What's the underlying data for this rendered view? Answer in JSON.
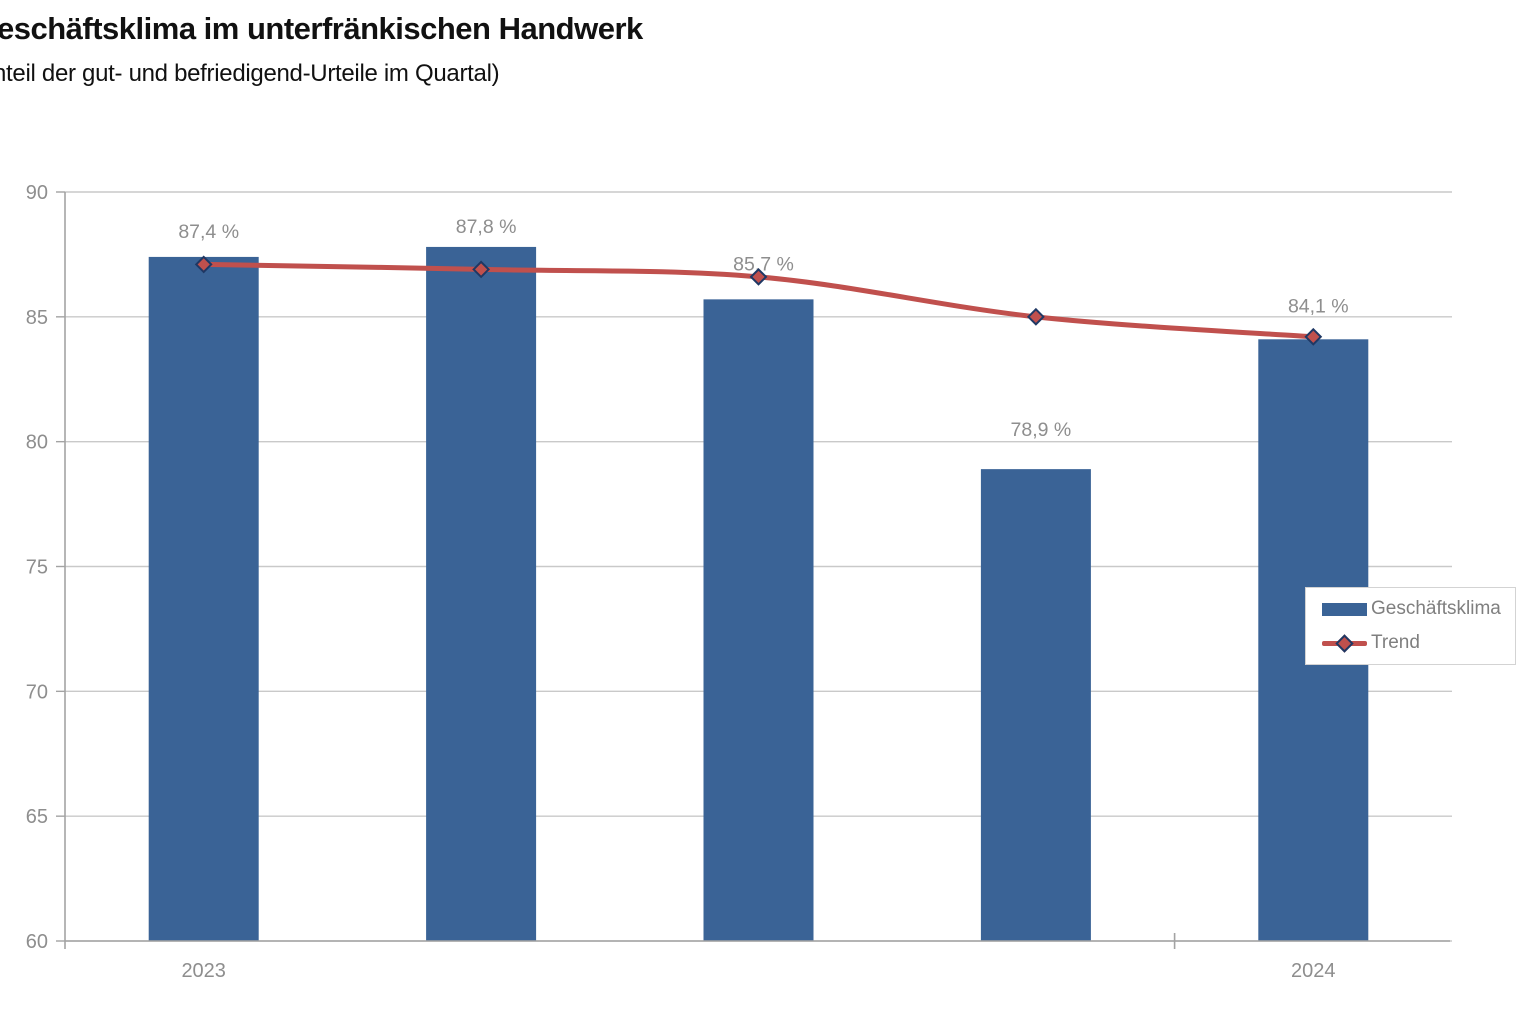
{
  "header": {
    "title": "eschäftsklima im unterfränkischen Handwerk",
    "subtitle": "nteil der gut- und befriedigend-Urteile im Quartal)"
  },
  "chart_data": {
    "type": "bar",
    "categories": [
      "2023",
      "",
      "",
      "",
      "2024"
    ],
    "series": [
      {
        "name": "Geschäftsklima",
        "type": "bar",
        "values": [
          87.4,
          87.8,
          85.7,
          78.9,
          84.1
        ],
        "labels": [
          "87,4 %",
          "87,8 %",
          "85,7 %",
          "78,9 %",
          "84,1 %"
        ],
        "color": "#3a6396"
      },
      {
        "name": "Trend",
        "type": "line",
        "values": [
          87.1,
          86.9,
          86.6,
          85.0,
          84.2
        ],
        "color": "#c0504d",
        "marker": "diamond",
        "marker_border_color": "#1f3864"
      }
    ],
    "ylim": [
      60,
      90
    ],
    "yticks": [
      60,
      65,
      70,
      75,
      80,
      85,
      90
    ],
    "grid": true,
    "legend": {
      "position": "middle-right",
      "entries": [
        "Geschäftsklima",
        "Trend"
      ]
    },
    "colors": {
      "gridline": "#c9c9c9",
      "axis": "#a3a3a3",
      "tick_label": "#8e8e8e",
      "data_label": "#8e8e8e",
      "legend_text": "#7f7f7f"
    }
  }
}
